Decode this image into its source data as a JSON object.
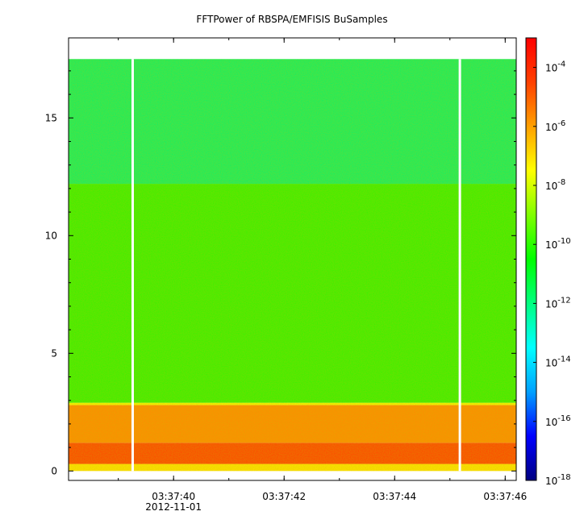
{
  "chart_data": {
    "type": "heatmap",
    "title": "FFTPower of RBSPA/EMFISIS  BuSamples",
    "xlabel": "",
    "ylabel": "",
    "x": {
      "range_seconds": [
        "03:37:38.1",
        "03:37:46.2"
      ],
      "tick_labels": [
        "03:37:40",
        "03:37:42",
        "03:37:44",
        "03:37:46"
      ],
      "date_label": "2012-11-01"
    },
    "y": {
      "range": [
        -0.4,
        18.4
      ],
      "ticks": [
        0,
        5,
        10,
        15
      ],
      "tick_labels": [
        "0",
        "5",
        "10",
        "15"
      ]
    },
    "colorbar": {
      "scale": "log",
      "range": [
        1e-18,
        0.001
      ],
      "ticks": [
        {
          "mantissa": "10",
          "exp": "-4"
        },
        {
          "mantissa": "10",
          "exp": "-6"
        },
        {
          "mantissa": "10",
          "exp": "-8"
        },
        {
          "mantissa": "10",
          "exp": "-10"
        },
        {
          "mantissa": "10",
          "exp": "-12"
        },
        {
          "mantissa": "10",
          "exp": "-14"
        },
        {
          "mantissa": "10",
          "exp": "-16"
        },
        {
          "mantissa": "10",
          "exp": "-18"
        }
      ],
      "colormap": [
        "#000080",
        "#0000ff",
        "#00a0ff",
        "#00ffff",
        "#00ff80",
        "#00ff00",
        "#80ff00",
        "#ffff00",
        "#ffa000",
        "#ff4000",
        "#ff0000"
      ]
    },
    "bands": [
      {
        "y_from": 0.0,
        "y_to": 0.3,
        "log_power": -8.5,
        "color": "#ffe000"
      },
      {
        "y_from": 0.3,
        "y_to": 1.2,
        "log_power": -5.5,
        "color": "#ff4a00"
      },
      {
        "y_from": 1.2,
        "y_to": 2.8,
        "log_power": -6.8,
        "color": "#ff8c00"
      },
      {
        "y_from": 2.8,
        "y_to": 2.9,
        "log_power": -8.7,
        "color": "#f5f000"
      },
      {
        "y_from": 2.9,
        "y_to": 12.2,
        "log_power": -10.6,
        "color": "#3ef000"
      },
      {
        "y_from": 12.2,
        "y_to": 17.5,
        "log_power": -11.7,
        "color": "#18ef60"
      }
    ],
    "data_gaps_seconds": [
      "03:37:39.26",
      "03:37:45.18"
    ],
    "grid": false
  }
}
